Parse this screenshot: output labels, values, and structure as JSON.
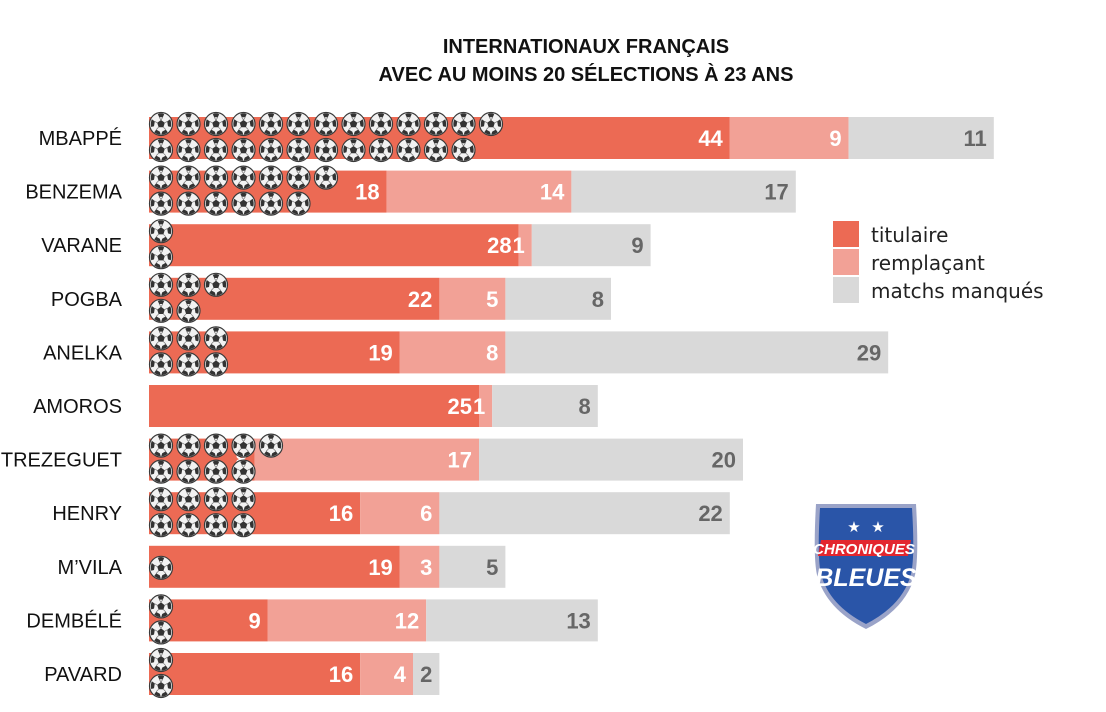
{
  "chart_data": {
    "type": "bar",
    "stacked": true,
    "orientation": "horizontal",
    "title": [
      "INTERNATIONAUX FRANÇAIS",
      "AVEC AU MOINS 20 SÉLECTIONS À 23 ANS"
    ],
    "categories": [
      "MBAPPÉ",
      "BENZEMA",
      "VARANE",
      "POGBA",
      "ANELKA",
      "AMOROS",
      "TREZEGUET",
      "HENRY",
      "M’VILA",
      "DEMBÉLÉ",
      "PAVARD"
    ],
    "series": [
      {
        "name": "titulaire",
        "color": "#ec6a54",
        "values": [
          44,
          18,
          28,
          22,
          19,
          25,
          8,
          16,
          19,
          9,
          16
        ]
      },
      {
        "name": "remplaçant",
        "color": "#f2a196",
        "values": [
          9,
          14,
          1,
          5,
          8,
          1,
          17,
          6,
          3,
          12,
          4
        ]
      },
      {
        "name": "matchs manqués",
        "color": "#d9d9d9",
        "values": [
          11,
          17,
          9,
          8,
          29,
          8,
          20,
          22,
          5,
          13,
          2
        ]
      }
    ],
    "goals": [
      25,
      13,
      2,
      5,
      6,
      0,
      9,
      8,
      1,
      2,
      2
    ],
    "goals_icon": "soccer-ball-icon",
    "legend_position": "right",
    "grid": false
  },
  "logo": {
    "line1": "CHRONIQUES",
    "line2": "BLEUES",
    "colors": {
      "shield": "#2a55a8",
      "border": "#9aa3c8",
      "band": "#e3262e",
      "text": "#ffffff"
    }
  }
}
